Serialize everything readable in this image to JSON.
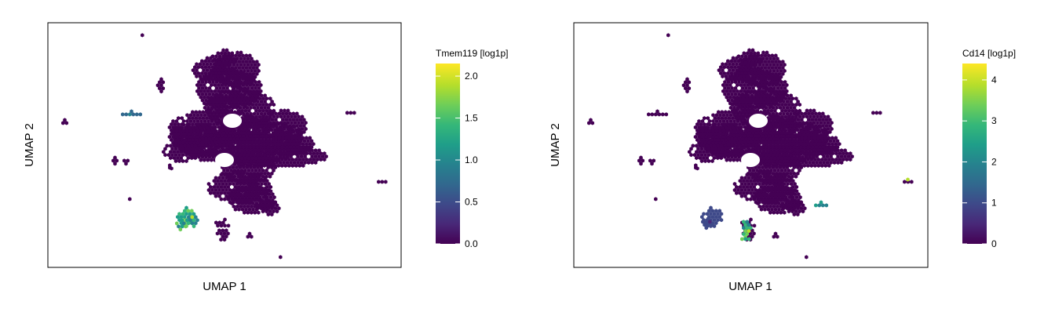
{
  "chart_data": [
    {
      "type": "hexbin",
      "xlabel": "UMAP 1",
      "ylabel": "UMAP 2",
      "colorbar": {
        "title": "Tmem119 [log1p]",
        "ticks": [
          "0.0",
          "0.5",
          "1.0",
          "1.5",
          "2.0"
        ],
        "tick_values": [
          0.0,
          0.5,
          1.0,
          1.5,
          2.0
        ],
        "range": [
          0.0,
          2.15
        ],
        "colormap": "viridis"
      },
      "clusters": [
        {
          "region": "main-body",
          "expression": "low",
          "value": 0.0
        },
        {
          "region": "lower-left-triangle",
          "expression": "high",
          "value": 1.6
        },
        {
          "region": "left-strip",
          "expression": "medium",
          "value": 0.8
        },
        {
          "region": "small-islands",
          "expression": "low",
          "value": 0.0
        }
      ]
    },
    {
      "type": "hexbin",
      "xlabel": "UMAP 1",
      "ylabel": "UMAP 2",
      "colorbar": {
        "title": "Cd14 [log1p]",
        "ticks": [
          "0",
          "1",
          "2",
          "3",
          "4"
        ],
        "tick_values": [
          0,
          1,
          2,
          3,
          4
        ],
        "range": [
          0,
          4.4
        ],
        "colormap": "viridis"
      },
      "clusters": [
        {
          "region": "main-body",
          "expression": "low",
          "value": 0.0
        },
        {
          "region": "lower-left-triangle",
          "expression": "medium-low",
          "value": 0.9
        },
        {
          "region": "lower-middle-column",
          "expression": "high",
          "value": 3.3
        },
        {
          "region": "right-islet",
          "expression": "high",
          "value": 4.0
        },
        {
          "region": "lower-right-tail",
          "expression": "medium",
          "value": 2.3
        }
      ]
    }
  ],
  "colors": {
    "viridis": [
      "#440154",
      "#482878",
      "#3e4989",
      "#31688e",
      "#26828e",
      "#1f9e89",
      "#35b779",
      "#6ece58",
      "#b5de2b",
      "#fde725"
    ]
  }
}
